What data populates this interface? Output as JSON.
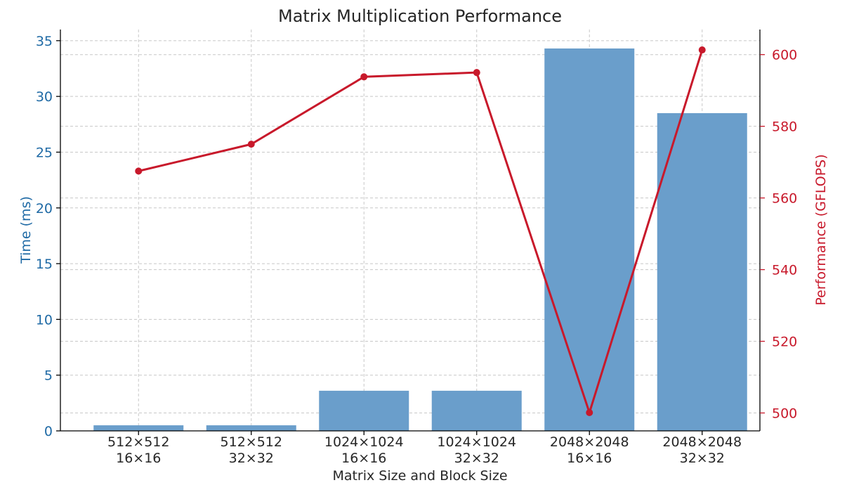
{
  "chart_data": {
    "type": "bar",
    "title": "Matrix Multiplication Performance",
    "xlabel": "Matrix Size and Block Size",
    "categories": [
      [
        "512×512",
        "16×16"
      ],
      [
        "512×512",
        "32×32"
      ],
      [
        "1024×1024",
        "16×16"
      ],
      [
        "1024×1024",
        "32×32"
      ],
      [
        "2048×2048",
        "16×16"
      ],
      [
        "2048×2048",
        "32×32"
      ]
    ],
    "series": [
      {
        "type": "bar",
        "axis": "left",
        "color": "#6a9ecb",
        "values": [
          0.5,
          0.5,
          3.6,
          3.6,
          34.3,
          28.5
        ]
      },
      {
        "type": "line",
        "axis": "right",
        "color": "#c8192b",
        "values": [
          567.5,
          575,
          593.8,
          595,
          500.1,
          601.3
        ]
      }
    ],
    "y_left": {
      "label": "Time (ms)",
      "color": "#1f6aa5",
      "ylim": [
        0,
        36
      ],
      "ticks": [
        "0",
        "5",
        "10",
        "15",
        "20",
        "25",
        "30",
        "35"
      ]
    },
    "y_right": {
      "label": "Performance (GFLOPS)",
      "color": "#c8192b",
      "ylim": [
        495,
        607
      ],
      "ticks": [
        "500",
        "520",
        "540",
        "560",
        "580",
        "600"
      ]
    },
    "grid": true
  }
}
